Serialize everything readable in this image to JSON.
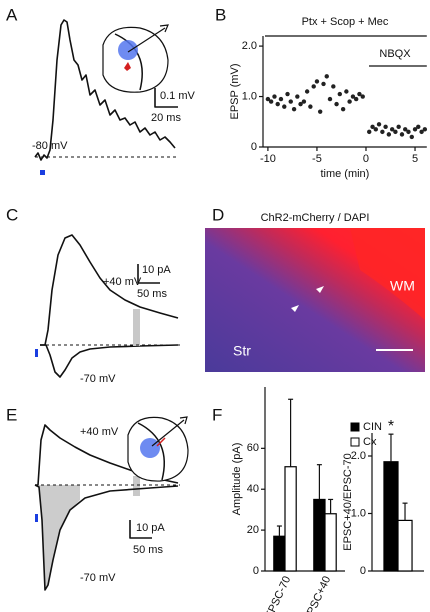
{
  "panels": [
    {
      "label": "A",
      "holding": "-80 mV",
      "scale_y": "0.1 mV",
      "scale_x": "20 ms"
    },
    {
      "label": "B"
    },
    {
      "label": "C",
      "upper": "+40 mV",
      "lower": "-70 mV",
      "scale_y": "10 pA",
      "scale_x": "50 ms"
    },
    {
      "label": "D",
      "title": "ChR2-mCherry / DAPI",
      "region_1": "WM",
      "region_2": "Str"
    },
    {
      "label": "E",
      "upper": "+40 mV",
      "lower": "-70 mV",
      "scale_y": "10 pA",
      "scale_x": "50 ms"
    },
    {
      "label": "F"
    }
  ],
  "chart_data": [
    {
      "type": "scatter",
      "xlabel": "time (min)",
      "ylabel": "EPSP (mV)",
      "annotations": [
        "Ptx + Scop + Mec",
        "NBQX"
      ],
      "xlim": [
        -10.5,
        6.2
      ],
      "ylim": [
        0,
        2.2
      ],
      "xticks": [
        -10,
        -5,
        0,
        5
      ],
      "yticks": [
        0,
        {
          "value": 1,
          "label": "1.0"
        },
        {
          "value": 2,
          "label": "2.0"
        }
      ],
      "color": "#222222",
      "x": [
        -10,
        -9.67,
        -9.33,
        -9,
        -8.67,
        -8.33,
        -8,
        -7.67,
        -7.33,
        -7,
        -6.67,
        -6.33,
        -6,
        -5.67,
        -5.33,
        -5,
        -4.67,
        -4.33,
        -4,
        -3.67,
        -3.33,
        -3,
        -2.67,
        -2.33,
        -2,
        -1.67,
        -1.33,
        -1,
        -0.67,
        -0.33,
        0.33,
        0.67,
        1,
        1.33,
        1.67,
        2,
        2.33,
        2.67,
        3,
        3.33,
        3.67,
        4,
        4.33,
        4.67,
        5,
        5.33,
        5.67,
        6
      ],
      "values": [
        0.95,
        0.9,
        1.0,
        0.85,
        0.95,
        0.8,
        1.05,
        0.9,
        0.75,
        1.0,
        0.85,
        0.9,
        1.1,
        0.8,
        1.2,
        1.3,
        0.7,
        1.25,
        1.4,
        0.95,
        1.2,
        0.85,
        1.05,
        0.75,
        1.1,
        0.9,
        1.0,
        0.95,
        1.05,
        1.0,
        0.3,
        0.4,
        0.35,
        0.45,
        0.3,
        0.4,
        0.25,
        0.35,
        0.3,
        0.4,
        0.25,
        0.35,
        0.3,
        0.2,
        0.35,
        0.4,
        0.3,
        0.35
      ]
    },
    {
      "type": "bar",
      "ylabel": "Amplitude (pA)",
      "categories": [
        "EPSC-70",
        "EPSC+40"
      ],
      "ylim": [
        0,
        90
      ],
      "yticks": [
        0,
        20,
        40,
        60
      ],
      "legend": "upper right",
      "series": [
        {
          "name": "CIN",
          "color": "#000000",
          "values": [
            17,
            35
          ],
          "errors": [
            5,
            17
          ]
        },
        {
          "name": "Cx",
          "color": "#ffffff",
          "values": [
            51,
            28
          ],
          "errors": [
            33,
            7
          ]
        }
      ]
    },
    {
      "type": "bar",
      "ylabel": "EPSC+40/EPSC-70",
      "annotation": "*",
      "categories": [
        null
      ],
      "ylim": [
        0,
        2.4
      ],
      "yticks": [
        0,
        {
          "value": 1,
          "label": "1.0"
        },
        {
          "value": 2,
          "label": "2.0"
        }
      ],
      "series": [
        {
          "color": "#000000",
          "values": [
            1.9
          ],
          "errors": [
            0.48
          ]
        },
        {
          "color": "#ffffff",
          "values": [
            0.88
          ],
          "errors": [
            0.3
          ]
        }
      ]
    }
  ]
}
